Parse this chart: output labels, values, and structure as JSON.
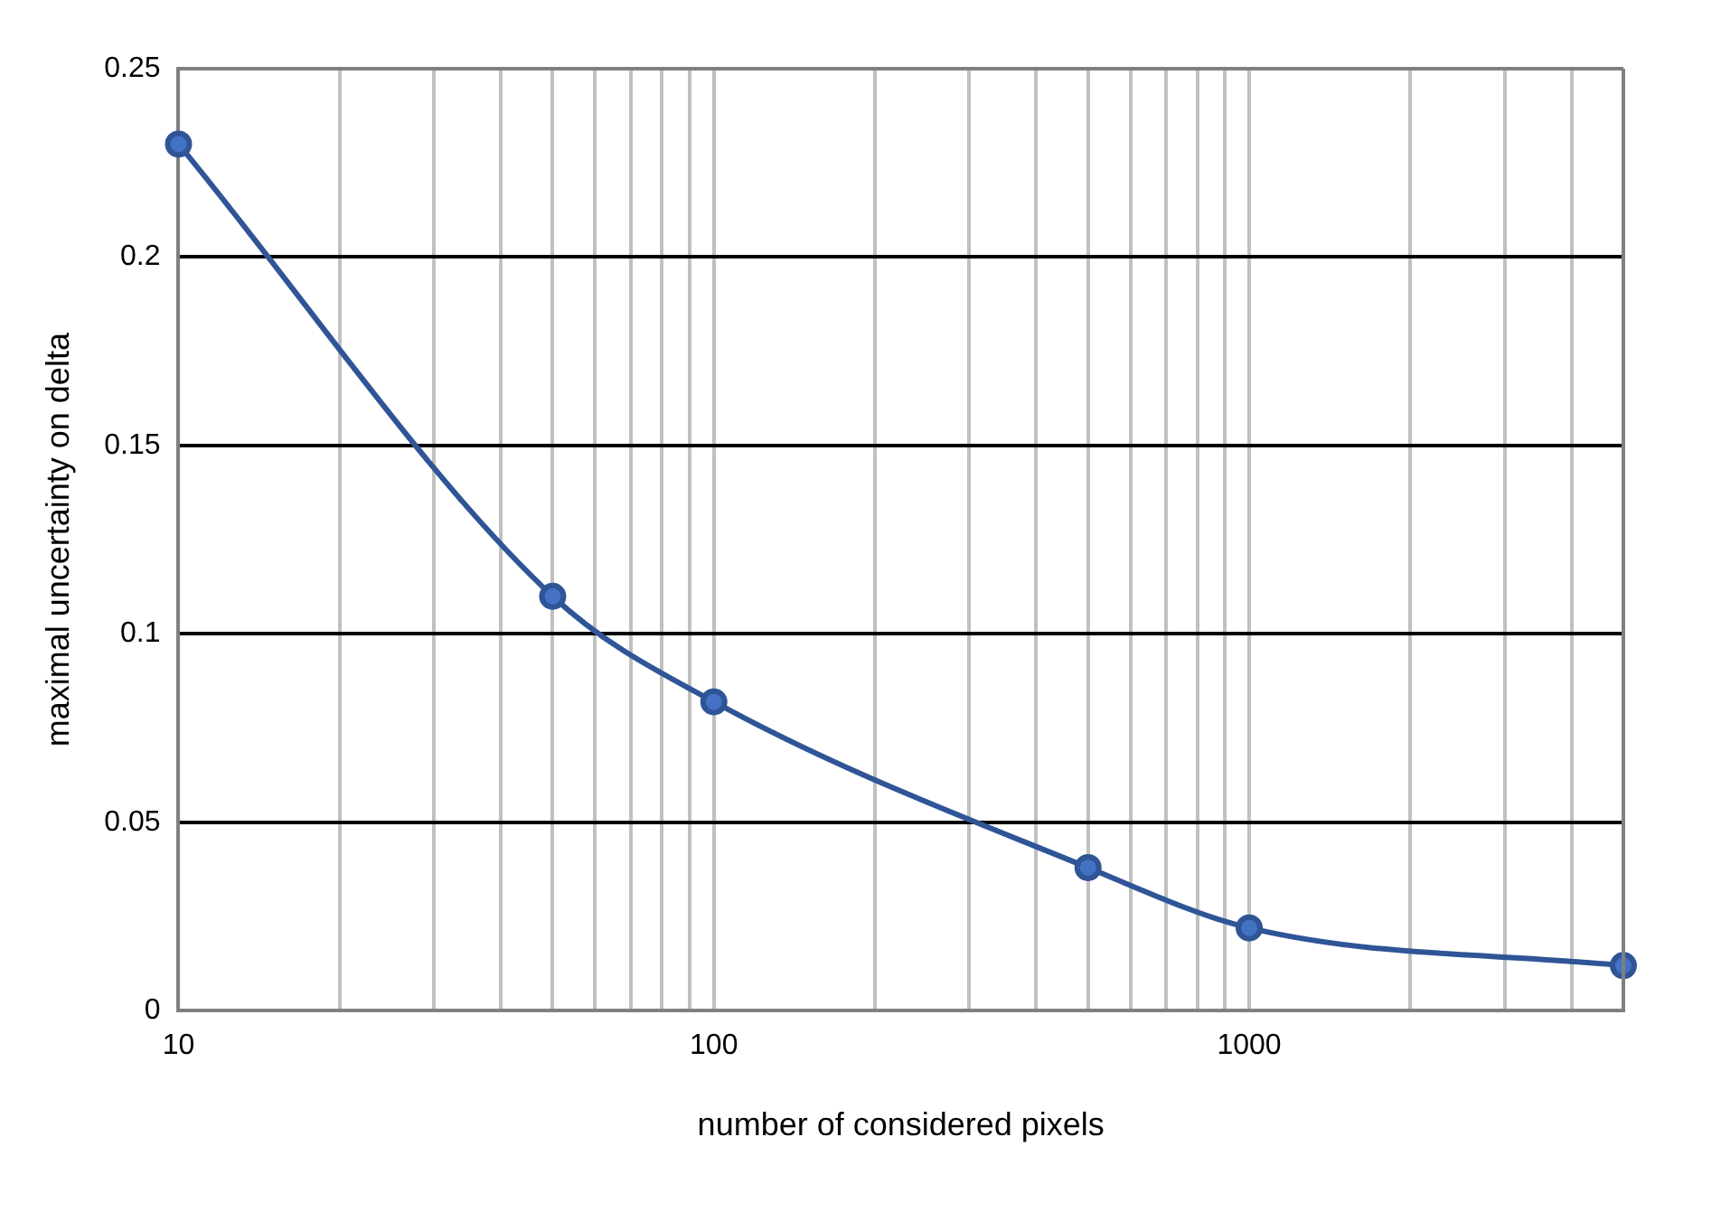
{
  "chart_data": {
    "type": "line",
    "xlabel": "number of considered pixels",
    "ylabel": "maximal uncertainty on delta",
    "x": [
      10,
      50,
      100,
      500,
      1000,
      5000
    ],
    "series": [
      {
        "color": "#4472c4",
        "values": [
          0.23,
          0.11,
          0.082,
          0.038,
          0.022,
          0.012
        ]
      }
    ],
    "log": "x",
    "xlim": [
      10,
      5000
    ],
    "xticks": [
      10,
      {
        "value": 20,
        "label": null
      },
      {
        "value": 30,
        "label": null
      },
      {
        "value": 40,
        "label": null
      },
      {
        "value": 50,
        "label": null
      },
      {
        "value": 60,
        "label": null
      },
      {
        "value": 70,
        "label": null
      },
      {
        "value": 80,
        "label": null
      },
      {
        "value": 90,
        "label": null
      },
      100,
      {
        "value": 200,
        "label": null
      },
      {
        "value": 300,
        "label": null
      },
      {
        "value": 400,
        "label": null
      },
      {
        "value": 500,
        "label": null
      },
      {
        "value": 600,
        "label": null
      },
      {
        "value": 700,
        "label": null
      },
      {
        "value": 800,
        "label": null
      },
      {
        "value": 900,
        "label": null
      },
      1000,
      {
        "value": 2000,
        "label": null
      },
      {
        "value": 3000,
        "label": null
      },
      {
        "value": 4000,
        "label": null
      },
      {
        "value": 5000,
        "label": null
      }
    ],
    "ylim": [
      0,
      0.25
    ],
    "yticks": [
      0,
      0.05,
      0.1,
      0.15,
      0.2,
      0.25
    ],
    "grid": true,
    "marker": "circle",
    "line_style": "solid",
    "legend": false
  }
}
